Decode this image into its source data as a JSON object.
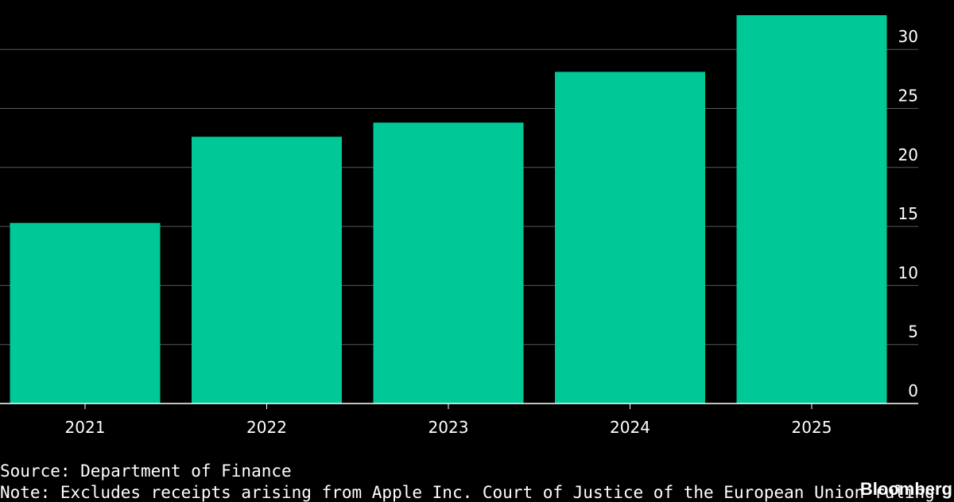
{
  "chart_data": {
    "type": "bar",
    "categories": [
      "2021",
      "2022",
      "2023",
      "2024",
      "2025"
    ],
    "values": [
      15.3,
      22.6,
      23.8,
      28.1,
      32.9
    ],
    "ylim": [
      0,
      33
    ],
    "yticks": [
      0,
      5,
      10,
      15,
      20,
      25,
      30
    ],
    "ytick_labels": [
      "0",
      "5",
      "10",
      "15",
      "20",
      "25",
      "30"
    ],
    "y_axis_side": "right",
    "grid": true,
    "title": "",
    "xlabel": "",
    "ylabel": ""
  },
  "colors": {
    "background": "#000000",
    "bar": "#00c896",
    "grid": "#5a5a5a",
    "text": "#ffffff"
  },
  "footer": {
    "source": "Source: Department of Finance",
    "note": "Note: Excludes receipts arising from Apple Inc. Court of Justice of the European Union ruling",
    "brand": "Bloomberg"
  }
}
